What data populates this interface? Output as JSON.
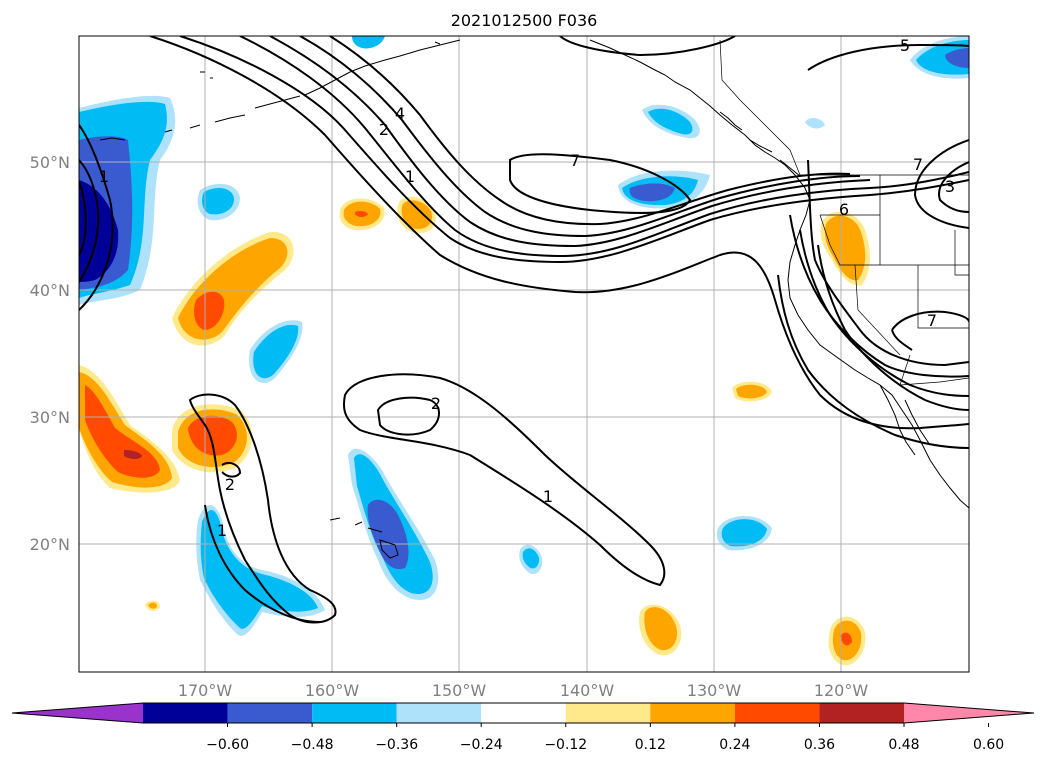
{
  "title": "2021012500 F036",
  "lat_labels": [
    "50°N",
    "40°N",
    "30°N",
    "20°N"
  ],
  "lon_labels": [
    "170°W",
    "160°W",
    "150°W",
    "140°W",
    "130°W",
    "120°W"
  ],
  "colorbar": {
    "tick_labels": [
      "−0.60",
      "−0.48",
      "−0.36",
      "−0.24",
      "−0.12",
      "0.12",
      "0.24",
      "0.36",
      "0.48",
      "0.60"
    ],
    "colors": [
      "#9933cc",
      "#000099",
      "#3a5bd0",
      "#00bbf4",
      "#aee2fb",
      "#ffffff",
      "#ffe98a",
      "#ffa500",
      "#ff4a00",
      "#b22222",
      "#ff88aa"
    ]
  },
  "contour_labels": [
    "7",
    "7",
    "7",
    "6",
    "5",
    "4",
    "3",
    "2",
    "2",
    "2",
    "1",
    "1",
    "1",
    "1"
  ],
  "colors": {
    "c_m060": "#000099",
    "c_m048": "#3a5bd0",
    "c_m036": "#00bbf4",
    "c_m024": "#aee2fb",
    "c_p012": "#ffe98a",
    "c_p024": "#ffa500",
    "c_p036": "#ff4a00",
    "c_p048": "#b22222"
  }
}
